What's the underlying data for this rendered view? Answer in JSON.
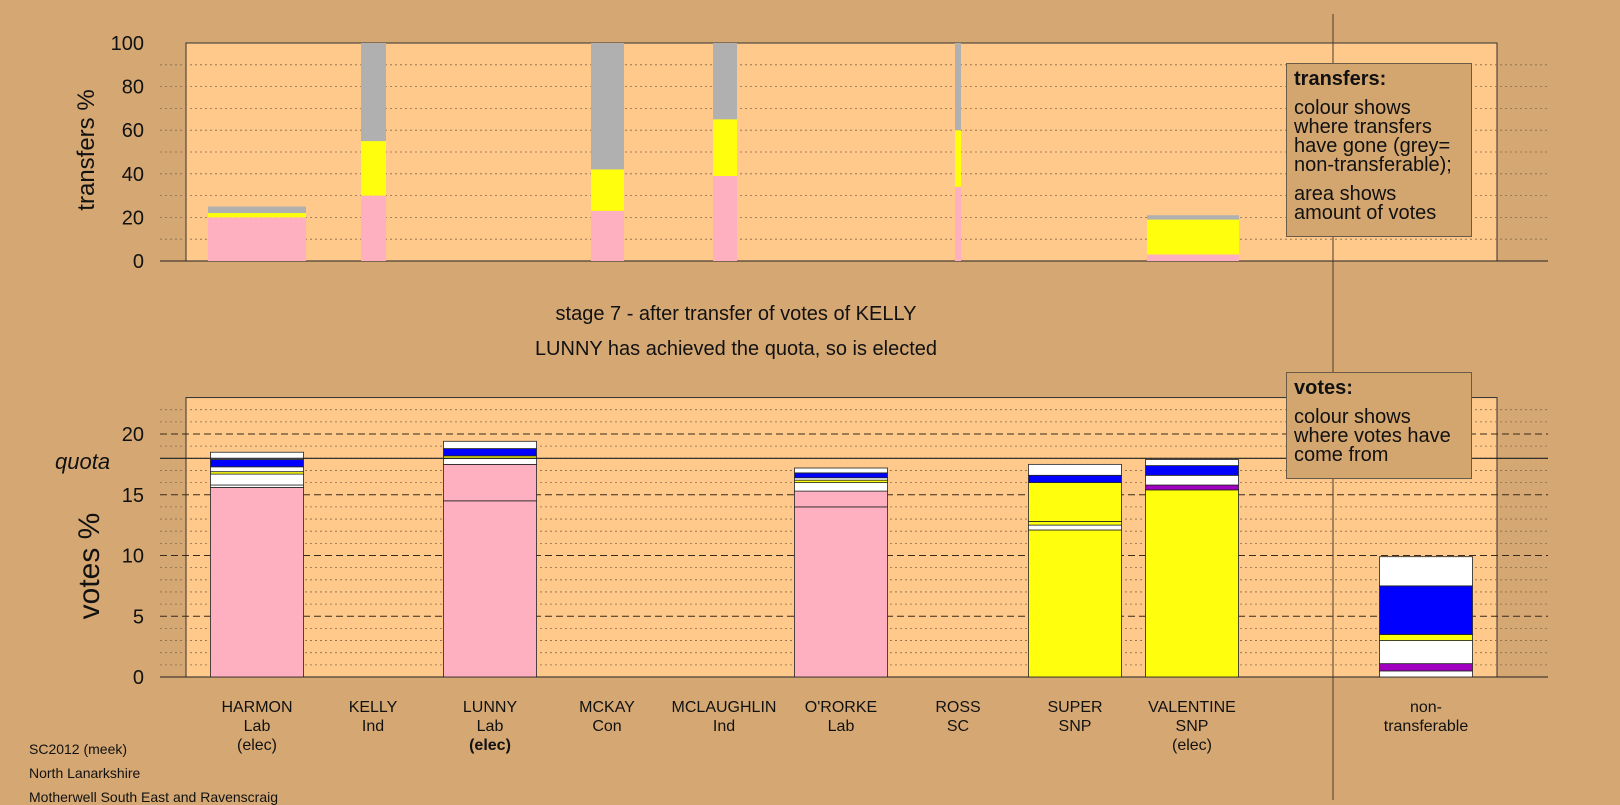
{
  "upper": {
    "ylabel": "transfers %"
  },
  "lower": {
    "ylabel": "votes %",
    "quota_label": "quota",
    "quota": 18.0
  },
  "stage_title": "stage 7 - after transfer of votes of KELLY",
  "stage_subtitle": "LUNNY has achieved the quota, so is elected",
  "transfers_box": {
    "heading": "transfers:",
    "text1": "colour shows where transfers have gone (grey= non-transferable);",
    "text2": "area shows amount of votes"
  },
  "votes_box": {
    "heading": "votes:",
    "text1": "colour shows where votes have come from"
  },
  "footer": {
    "line1": "SC2012 (meek)",
    "line2": "North Lanarkshire",
    "line3": "Motherwell South East and Ravenscraig"
  },
  "colors": {
    "background": "#d5a873",
    "plot": "#fec98b",
    "lab": "#ffb0c0",
    "snp": "#ffff0d",
    "con": "#0000ff",
    "ind": "#ffffff",
    "sc": "#a000c0",
    "nontransferable": "#b0b0b0"
  },
  "chart_data": [
    {
      "type": "bar",
      "title": "",
      "ylabel": "transfers %",
      "ylim": [
        0,
        100
      ],
      "yticks": [
        0,
        20,
        40,
        60,
        80,
        100
      ],
      "grid": true,
      "stacked": true,
      "bars": [
        {
          "candidate": "HARMON",
          "segments": [
            {
              "color": "lab",
              "value": 20
            },
            {
              "color": "snp",
              "value": 2
            },
            {
              "color": "nontransferable",
              "value": 3
            }
          ]
        },
        {
          "candidate": "KELLY",
          "segments": [
            {
              "color": "lab",
              "value": 30
            },
            {
              "color": "snp",
              "value": 25
            },
            {
              "color": "nontransferable",
              "value": 45
            }
          ]
        },
        {
          "candidate": "MCKAY",
          "segments": [
            {
              "color": "lab",
              "value": 23
            },
            {
              "color": "snp",
              "value": 19
            },
            {
              "color": "nontransferable",
              "value": 58
            }
          ]
        },
        {
          "candidate": "MCLAUGHLIN",
          "segments": [
            {
              "color": "lab",
              "value": 39
            },
            {
              "color": "snp",
              "value": 26
            },
            {
              "color": "nontransferable",
              "value": 35
            }
          ]
        },
        {
          "candidate": "ROSS",
          "segments": [
            {
              "color": "lab",
              "value": 34
            },
            {
              "color": "snp",
              "value": 26
            },
            {
              "color": "nontransferable",
              "value": 40
            }
          ]
        },
        {
          "candidate": "VALENTINE",
          "segments": [
            {
              "color": "lab",
              "value": 3
            },
            {
              "color": "snp",
              "value": 16
            },
            {
              "color": "nontransferable",
              "value": 2
            }
          ]
        }
      ]
    },
    {
      "type": "bar",
      "title": "",
      "ylabel": "votes %",
      "ylim": [
        0,
        23
      ],
      "yticks": [
        0,
        5,
        10,
        15,
        20
      ],
      "quota": 18.0,
      "grid": true,
      "stacked": true,
      "categories": [
        {
          "name": "HARMON",
          "party": "Lab",
          "status": "(elec)"
        },
        {
          "name": "KELLY",
          "party": "Ind",
          "status": ""
        },
        {
          "name": "LUNNY",
          "party": "Lab",
          "status": "(elec)",
          "status_bold": true
        },
        {
          "name": "MCKAY",
          "party": "Con",
          "status": ""
        },
        {
          "name": "MCLAUGHLIN",
          "party": "Ind",
          "status": ""
        },
        {
          "name": "O'RORKE",
          "party": "Lab",
          "status": ""
        },
        {
          "name": "ROSS",
          "party": "SC",
          "status": ""
        },
        {
          "name": "SUPER",
          "party": "SNP",
          "status": ""
        },
        {
          "name": "VALENTINE",
          "party": "SNP",
          "status": "(elec)"
        },
        {
          "name": "non-",
          "party": "transferable",
          "status": ""
        }
      ],
      "bars": [
        {
          "candidate": "HARMON",
          "segments": [
            {
              "color": "lab",
              "value": 15.6
            },
            {
              "color": "ind",
              "value": 0.2
            },
            {
              "color": "ind",
              "value": 0.9
            },
            {
              "color": "snp",
              "value": 0.2
            },
            {
              "color": "ind",
              "value": 0.4
            },
            {
              "color": "con",
              "value": 0.6
            },
            {
              "color": "ind",
              "value": 0.6
            }
          ]
        },
        {
          "candidate": "KELLY",
          "segments": []
        },
        {
          "candidate": "LUNNY",
          "segments": [
            {
              "color": "lab",
              "value": 14.5
            },
            {
              "color": "lab",
              "value": 3.0
            },
            {
              "color": "ind",
              "value": 0.5
            },
            {
              "color": "snp",
              "value": 0.2
            },
            {
              "color": "con",
              "value": 0.6
            },
            {
              "color": "ind",
              "value": 0.6
            }
          ]
        },
        {
          "candidate": "MCKAY",
          "segments": []
        },
        {
          "candidate": "MCLAUGHLIN",
          "segments": []
        },
        {
          "candidate": "O'RORKE",
          "segments": [
            {
              "color": "lab",
              "value": 14.0
            },
            {
              "color": "lab",
              "value": 1.3
            },
            {
              "color": "ind",
              "value": 0.7
            },
            {
              "color": "snp",
              "value": 0.2
            },
            {
              "color": "ind",
              "value": 0.2
            },
            {
              "color": "con",
              "value": 0.4
            },
            {
              "color": "ind",
              "value": 0.4
            }
          ]
        },
        {
          "candidate": "ROSS",
          "segments": []
        },
        {
          "candidate": "SUPER",
          "segments": [
            {
              "color": "snp",
              "value": 12.1
            },
            {
              "color": "ind",
              "value": 0.4
            },
            {
              "color": "snp",
              "value": 0.3
            },
            {
              "color": "snp",
              "value": 3.2
            },
            {
              "color": "con",
              "value": 0.6
            },
            {
              "color": "ind",
              "value": 0.9
            }
          ]
        },
        {
          "candidate": "VALENTINE",
          "segments": [
            {
              "color": "snp",
              "value": 15.4
            },
            {
              "color": "sc",
              "value": 0.4
            },
            {
              "color": "ind",
              "value": 0.8
            },
            {
              "color": "con",
              "value": 0.8
            },
            {
              "color": "ind",
              "value": 0.5
            }
          ]
        },
        {
          "candidate": "non-transferable",
          "segments": [
            {
              "color": "ind",
              "value": 0.5
            },
            {
              "color": "sc",
              "value": 0.6
            },
            {
              "color": "ind",
              "value": 1.9
            },
            {
              "color": "snp",
              "value": 0.5
            },
            {
              "color": "con",
              "value": 4.0
            },
            {
              "color": "ind",
              "value": 2.4
            }
          ]
        }
      ]
    }
  ]
}
